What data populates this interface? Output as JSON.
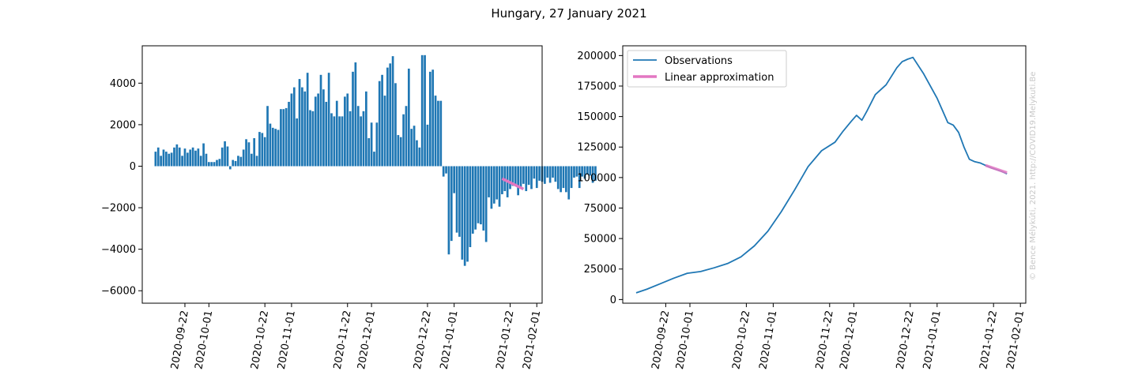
{
  "figure": {
    "title": "Hungary, 27 January 2021",
    "watermark": "© Bence Mélykúti, 2021. http://COVID19.Melykuti.Be"
  },
  "colors": {
    "observations": "#1f77b4",
    "approximation": "#e377c2",
    "axes": "#000000",
    "watermark": "#c8c8c8"
  },
  "chart_data": [
    {
      "type": "bar",
      "title": "",
      "xlabel": "",
      "ylabel": "",
      "x_start": "2020-09-11",
      "x_end": "2021-01-27",
      "xlim": [
        "2020-09-06",
        "2021-02-03"
      ],
      "ylim": [
        -6600,
        5800
      ],
      "xticks": [
        "2020-09-22",
        "2020-10-01",
        "2020-10-22",
        "2020-11-01",
        "2020-11-22",
        "2020-12-01",
        "2020-12-22",
        "2021-01-01",
        "2021-01-22",
        "2021-02-01"
      ],
      "yticks": [
        -6000,
        -4000,
        -2000,
        0,
        2000,
        4000
      ],
      "ytick_labels": [
        "−6000",
        "−4000",
        "−2000",
        "0",
        "2000",
        "4000"
      ],
      "series": [
        {
          "values": [
            700,
            900,
            500,
            800,
            700,
            600,
            650,
            900,
            1050,
            900,
            500,
            850,
            650,
            800,
            900,
            750,
            850,
            500,
            1100,
            600,
            200,
            200,
            200,
            300,
            350,
            900,
            1200,
            950,
            -150,
            300,
            250,
            500,
            450,
            800,
            1300,
            1150,
            600,
            1350,
            500,
            1650,
            1600,
            1400,
            2900,
            2050,
            1850,
            1800,
            1750,
            2750,
            2750,
            2800,
            3100,
            3500,
            3800,
            2300,
            4200,
            3800,
            3600,
            4500,
            2700,
            2650,
            3350,
            3500,
            4400,
            3700,
            3100,
            4500,
            2550,
            2400,
            3150,
            2400,
            2400,
            3350,
            3500,
            2650,
            4550,
            5000,
            2900,
            2400,
            2650,
            3600,
            1350,
            2100,
            700,
            2100,
            4100,
            4400,
            3400,
            4750,
            4950,
            5300,
            4000,
            1500,
            1400,
            2500,
            2900,
            4700,
            1800,
            1950,
            1250,
            900,
            5350,
            5350,
            2000,
            4550,
            4650,
            3400,
            3150,
            3150,
            -500,
            -350,
            -4250,
            -3600,
            -1300,
            -3200,
            -3400,
            -4500,
            -4800,
            -4600,
            -3900,
            -3250,
            -3050,
            -2750,
            -2800,
            -3100,
            -3650,
            -1500,
            -2050,
            -1800,
            -1600,
            -1950,
            -1350,
            -1200,
            -1500,
            -1100,
            -950,
            -900,
            -1400,
            -1050,
            -850,
            -1200,
            -900,
            -1100,
            -600,
            -1050,
            -700,
            -750,
            -850,
            -550,
            -800,
            -550,
            -750,
            -1100,
            -1250,
            -1050,
            -1250,
            -1600,
            -1050,
            -550,
            -500,
            -1050,
            -500,
            -600,
            -400,
            -450,
            -800,
            -700
          ],
          "name": ""
        },
        {
          "name": "Linear approximation",
          "x": [
            "2021-01-19",
            "2021-01-27"
          ],
          "values": [
            -600,
            -1100
          ]
        }
      ]
    },
    {
      "type": "line",
      "title": "",
      "xlabel": "",
      "ylabel": "",
      "xlim": [
        "2020-09-06",
        "2021-02-03"
      ],
      "ylim": [
        -3000,
        208000
      ],
      "xticks": [
        "2020-09-22",
        "2020-10-01",
        "2020-10-22",
        "2020-11-01",
        "2020-11-22",
        "2020-12-01",
        "2020-12-22",
        "2021-01-01",
        "2021-01-22",
        "2021-02-01"
      ],
      "yticks": [
        0,
        25000,
        50000,
        75000,
        100000,
        125000,
        150000,
        175000,
        200000
      ],
      "legend": {
        "placement": "upper-left",
        "entries": [
          "Observations",
          "Linear approximation"
        ]
      },
      "series": [
        {
          "name": "Observations",
          "x": [
            "2020-09-11",
            "2020-09-15",
            "2020-09-20",
            "2020-09-25",
            "2020-09-30",
            "2020-10-05",
            "2020-10-10",
            "2020-10-15",
            "2020-10-20",
            "2020-10-25",
            "2020-10-30",
            "2020-11-04",
            "2020-11-09",
            "2020-11-14",
            "2020-11-19",
            "2020-11-24",
            "2020-11-27",
            "2020-11-30",
            "2020-12-02",
            "2020-12-04",
            "2020-12-06",
            "2020-12-09",
            "2020-12-13",
            "2020-12-17",
            "2020-12-19",
            "2020-12-21",
            "2020-12-23",
            "2020-12-27",
            "2021-01-01",
            "2021-01-03",
            "2021-01-05",
            "2021-01-07",
            "2021-01-09",
            "2021-01-11",
            "2021-01-13",
            "2021-01-15",
            "2021-01-17",
            "2021-01-19",
            "2021-01-21",
            "2021-01-23",
            "2021-01-25",
            "2021-01-27"
          ],
          "values": [
            5500,
            8500,
            13000,
            17500,
            21500,
            23000,
            26000,
            29500,
            35000,
            44000,
            56000,
            72000,
            90000,
            109000,
            122000,
            129000,
            138000,
            146000,
            151000,
            147000,
            155000,
            168000,
            176000,
            190000,
            195000,
            197000,
            198500,
            185000,
            165000,
            155000,
            145000,
            143000,
            137000,
            125000,
            115000,
            113000,
            112000,
            110000,
            108000,
            106500,
            105000,
            103000
          ]
        },
        {
          "name": "Linear approximation",
          "x": [
            "2021-01-19",
            "2021-01-27"
          ],
          "values": [
            110000,
            104000
          ]
        }
      ]
    }
  ]
}
